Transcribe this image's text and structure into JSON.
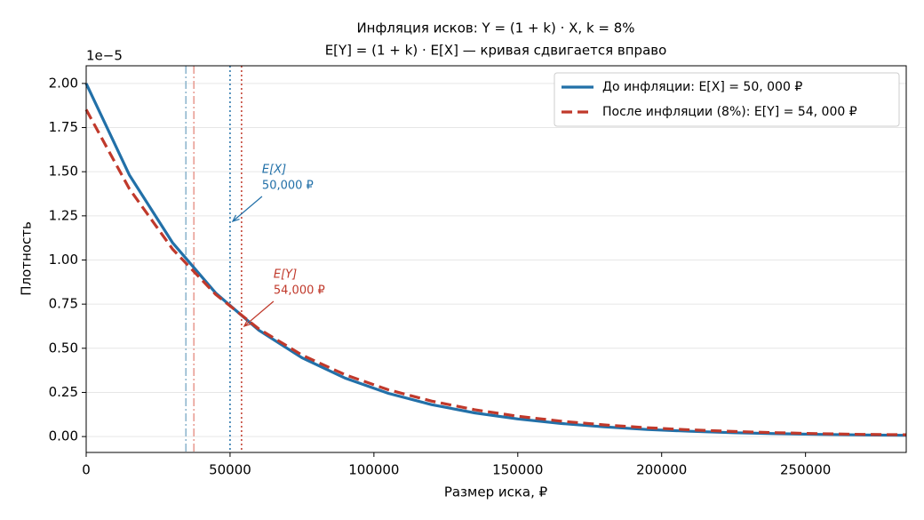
{
  "chart_data": {
    "type": "line",
    "title": "Инфляция исков: Y = (1 + k) · X, k = 8%",
    "subtitle": "E[Y] = (1 + k) · E[X] — кривая сдвигается вправо",
    "x_label": "Размер иска, ₽",
    "y_label": "Плотность",
    "y_offset_text": "1e−5",
    "x": [
      0,
      15000,
      30000,
      45000,
      60000,
      75000,
      90000,
      105000,
      120000,
      135000,
      150000,
      165000,
      180000,
      195000,
      210000,
      225000,
      240000,
      255000,
      270000,
      285000
    ],
    "series": [
      {
        "name": "До инфляции: E[X] = 50, 000 ₽",
        "color": "#2270a8",
        "dash": "solid",
        "values": [
          2.0,
          1.482,
          1.098,
          0.813,
          0.602,
          0.446,
          0.331,
          0.245,
          0.181,
          0.134,
          0.1,
          0.074,
          0.055,
          0.04,
          0.03,
          0.022,
          0.016,
          0.012,
          0.009,
          0.007
        ]
      },
      {
        "name": "После инфляции (8%): E[Y] = 54, 000 ₽",
        "color": "#c0392b",
        "dash": "dashed",
        "values": [
          1.852,
          1.403,
          1.062,
          0.805,
          0.61,
          0.462,
          0.35,
          0.265,
          0.201,
          0.152,
          0.115,
          0.087,
          0.066,
          0.05,
          0.038,
          0.029,
          0.022,
          0.016,
          0.012,
          0.01
        ]
      }
    ],
    "vlines": [
      {
        "x": 34657,
        "color": "#8ab4cc",
        "style": "dashdot"
      },
      {
        "x": 37430,
        "color": "#e8998f",
        "style": "dashdot"
      },
      {
        "x": 50000,
        "color": "#2270a8",
        "style": "dotted"
      },
      {
        "x": 54000,
        "color": "#c0392b",
        "style": "dotted"
      }
    ],
    "annotations": [
      {
        "title": "E[X]",
        "text": "50,000 ₽",
        "color": "#2270a8"
      },
      {
        "title": "E[Y]",
        "text": "54,000 ₽",
        "color": "#c0392b"
      }
    ],
    "xlim": [
      0,
      285000
    ],
    "ylim": [
      -0.09,
      2.1
    ],
    "xticks": [
      0,
      50000,
      100000,
      150000,
      200000,
      250000
    ],
    "yticks": [
      {
        "value": 0,
        "label": "0.00"
      },
      {
        "value": 0.25,
        "label": "0.25"
      },
      {
        "value": 0.5,
        "label": "0.50"
      },
      {
        "value": 0.75,
        "label": "0.75"
      },
      {
        "value": 1,
        "label": "1.00"
      },
      {
        "value": 1.25,
        "label": "1.25"
      },
      {
        "value": 1.5,
        "label": "1.50"
      },
      {
        "value": 1.75,
        "label": "1.75"
      },
      {
        "value": 2,
        "label": "2.00"
      }
    ],
    "grid": true,
    "legend": "upper right"
  }
}
